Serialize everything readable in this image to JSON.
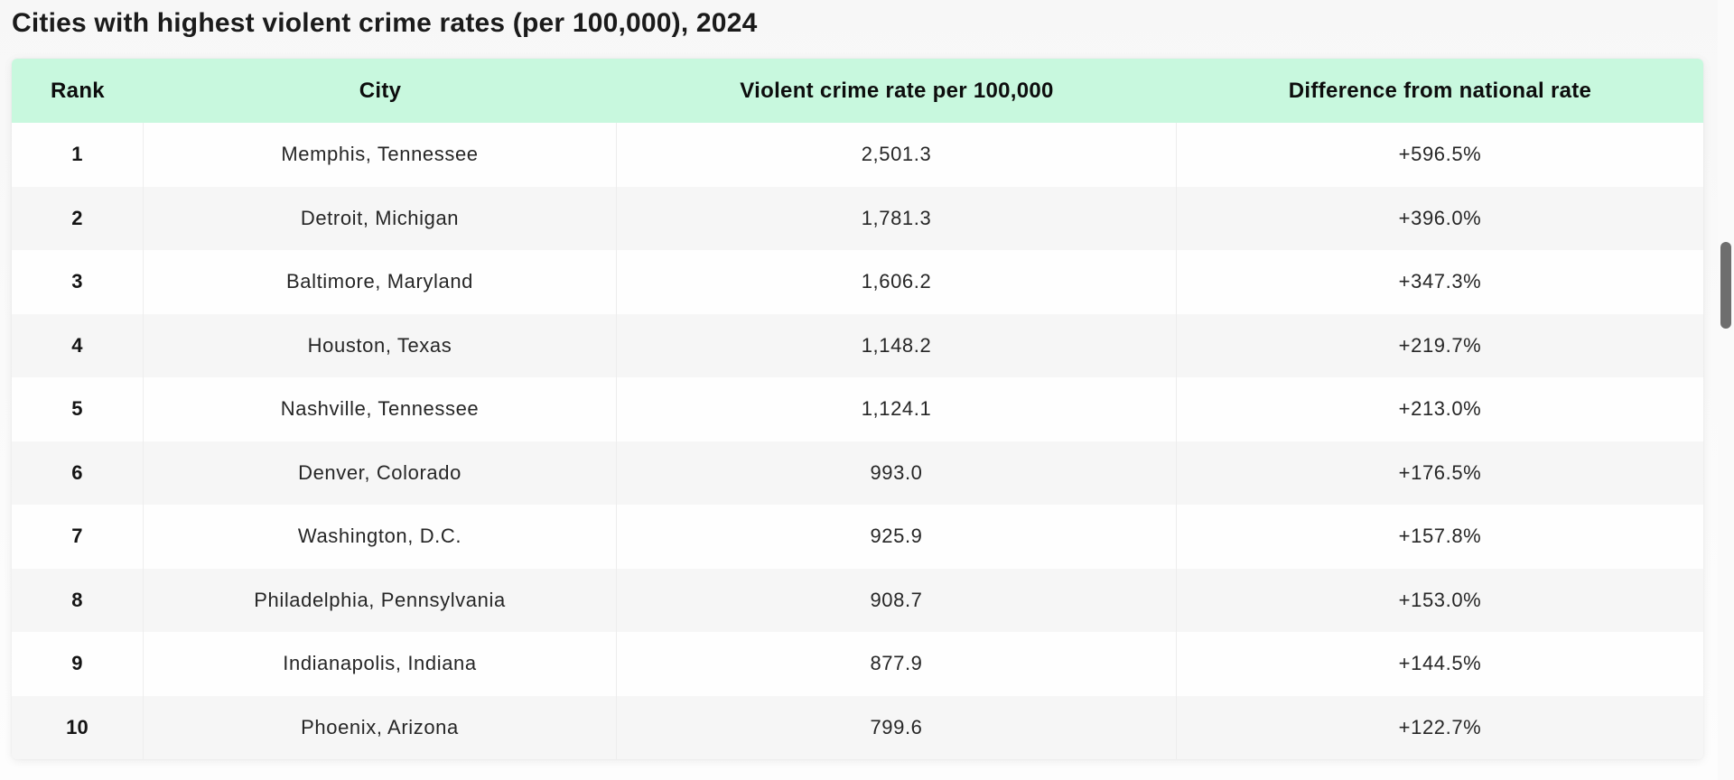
{
  "page": {
    "title": "Cities with highest violent crime rates (per 100,000), 2024"
  },
  "table": {
    "columns": [
      "Rank",
      "City",
      "Violent crime rate per 100,000",
      "Difference from national rate"
    ],
    "rows": [
      {
        "rank": "1",
        "city": "Memphis, Tennessee",
        "rate": "2,501.3",
        "difference": "+596.5%"
      },
      {
        "rank": "2",
        "city": "Detroit, Michigan",
        "rate": "1,781.3",
        "difference": "+396.0%"
      },
      {
        "rank": "3",
        "city": "Baltimore, Maryland",
        "rate": "1,606.2",
        "difference": "+347.3%"
      },
      {
        "rank": "4",
        "city": "Houston, Texas",
        "rate": "1,148.2",
        "difference": "+219.7%"
      },
      {
        "rank": "5",
        "city": "Nashville, Tennessee",
        "rate": "1,124.1",
        "difference": "+213.0%"
      },
      {
        "rank": "6",
        "city": "Denver, Colorado",
        "rate": "993.0",
        "difference": "+176.5%"
      },
      {
        "rank": "7",
        "city": "Washington, D.C.",
        "rate": "925.9",
        "difference": "+157.8%"
      },
      {
        "rank": "8",
        "city": "Philadelphia, Pennsylvania",
        "rate": "908.7",
        "difference": "+153.0%"
      },
      {
        "rank": "9",
        "city": "Indianapolis, Indiana",
        "rate": "877.9",
        "difference": "+144.5%"
      },
      {
        "rank": "10",
        "city": "Phoenix, Arizona",
        "rate": "799.6",
        "difference": "+122.7%"
      }
    ]
  },
  "colors": {
    "header_bg": "#c8f8de",
    "row_alt_bg": "#f6f6f6",
    "scrollbar_thumb": "#6e6e6e"
  }
}
